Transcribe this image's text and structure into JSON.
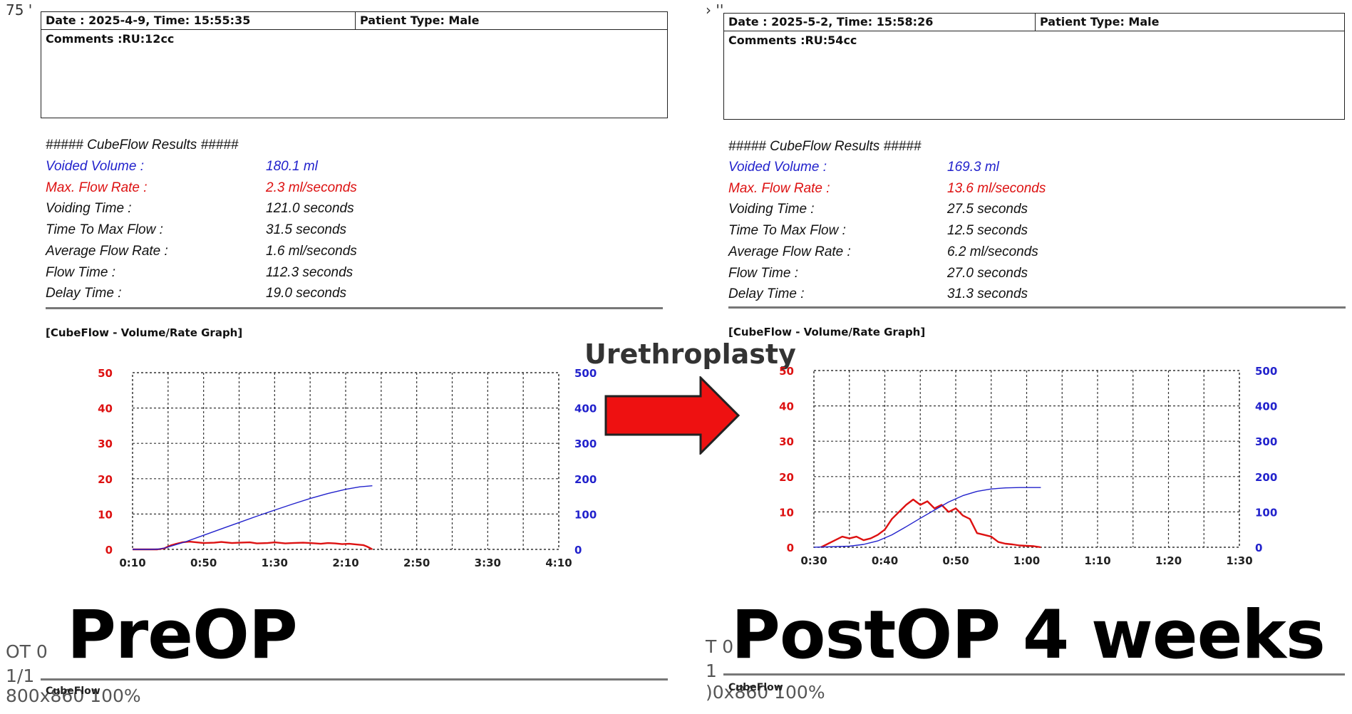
{
  "colors": {
    "rate": "#dd1111",
    "volume": "#2222cc",
    "grid": "#333333",
    "arrow": "#ee1111"
  },
  "arrow_label": "Urethroplasty",
  "panels": [
    {
      "corner_text": "75 '",
      "header": {
        "date": "Date : 2025-4-9,  Time: 15:55:35",
        "patient_type": "Patient Type: Male",
        "comments": "Comments :RU:12cc"
      },
      "results_title": "##### CubeFlow Results #####",
      "results": [
        {
          "label": "Voided Volume :",
          "value": "180.1 ml",
          "color": "#2222cc"
        },
        {
          "label": "Max. Flow Rate :",
          "value": "2.3 ml/seconds",
          "color": "#dd1111"
        },
        {
          "label": "Voiding Time :",
          "value": "121.0 seconds",
          "color": "#111111"
        },
        {
          "label": "Time To Max Flow :",
          "value": "31.5 seconds",
          "color": "#111111"
        },
        {
          "label": "Average Flow Rate :",
          "value": "1.6 ml/seconds",
          "color": "#111111"
        },
        {
          "label": "Flow Time :",
          "value": "112.3 seconds",
          "color": "#111111"
        },
        {
          "label": "Delay Time :",
          "value": "19.0 seconds",
          "color": "#111111"
        }
      ],
      "graph_title": "[CubeFlow - Volume/Rate Graph]",
      "big_label": "PreOP",
      "footer": {
        "line1": "OT 0",
        "line2": "1/1",
        "line3": "800x860 100%",
        "small": "CubeFlow"
      }
    },
    {
      "corner_text": "› ''",
      "header": {
        "date": "Date : 2025-5-2,  Time: 15:58:26",
        "patient_type": "Patient Type: Male",
        "comments": "Comments :RU:54cc"
      },
      "results_title": "##### CubeFlow Results #####",
      "results": [
        {
          "label": "Voided Volume :",
          "value": "169.3 ml",
          "color": "#2222cc"
        },
        {
          "label": "Max. Flow Rate :",
          "value": "13.6 ml/seconds",
          "color": "#dd1111"
        },
        {
          "label": "Voiding Time :",
          "value": "27.5 seconds",
          "color": "#111111"
        },
        {
          "label": "Time To Max Flow :",
          "value": "12.5 seconds",
          "color": "#111111"
        },
        {
          "label": "Average Flow Rate :",
          "value": "6.2 ml/seconds",
          "color": "#111111"
        },
        {
          "label": "Flow Time :",
          "value": "27.0 seconds",
          "color": "#111111"
        },
        {
          "label": "Delay Time :",
          "value": "31.3 seconds",
          "color": "#111111"
        }
      ],
      "graph_title": "[CubeFlow - Volume/Rate Graph]",
      "big_label": "PostOP 4 weeks",
      "footer": {
        "line1": "T 0",
        "line2": "1",
        "line3": ")0x860 100%",
        "small": "CubeFlow"
      }
    }
  ],
  "chart_data": [
    {
      "type": "line",
      "x_ticks": [
        "0:10",
        "0:50",
        "1:30",
        "2:10",
        "2:50",
        "3:30",
        "4:10"
      ],
      "xlim": [
        10,
        250
      ],
      "y_left_ticks": [
        "0",
        "10",
        "20",
        "30",
        "40",
        "50"
      ],
      "y_left_lim": [
        0,
        50
      ],
      "y_right_ticks": [
        "0",
        "100",
        "200",
        "300",
        "400",
        "500"
      ],
      "y_right_lim": [
        0,
        500
      ],
      "grid": true,
      "series": [
        {
          "axis": "left",
          "color": "#dd1111",
          "x": [
            10,
            18,
            24,
            28,
            30,
            32,
            34,
            38,
            42,
            46,
            50,
            56,
            60,
            66,
            70,
            76,
            80,
            86,
            90,
            96,
            100,
            106,
            110,
            116,
            120,
            124,
            128,
            132,
            136,
            140,
            142,
            144,
            145
          ],
          "values": [
            0,
            0,
            0,
            0.3,
            0.8,
            1.2,
            1.5,
            2.0,
            2.2,
            2.0,
            1.8,
            1.9,
            2.1,
            1.8,
            1.9,
            2.0,
            1.7,
            1.8,
            2.0,
            1.7,
            1.8,
            1.9,
            1.8,
            1.6,
            1.8,
            1.7,
            1.5,
            1.6,
            1.4,
            1.2,
            0.8,
            0.3,
            0
          ]
        },
        {
          "axis": "right",
          "color": "#2222cc",
          "x": [
            10,
            20,
            25,
            29,
            40,
            50,
            60,
            70,
            80,
            90,
            100,
            110,
            120,
            130,
            138,
            145
          ],
          "values": [
            0,
            0,
            1,
            5,
            22,
            40,
            58,
            76,
            94,
            111,
            128,
            144,
            158,
            170,
            177,
            180
          ]
        }
      ]
    },
    {
      "type": "line",
      "x_ticks": [
        "0:30",
        "0:40",
        "0:50",
        "1:00",
        "1:10",
        "1:20",
        "1:30"
      ],
      "xlim": [
        30,
        90
      ],
      "y_left_ticks": [
        "0",
        "10",
        "20",
        "30",
        "40",
        "50"
      ],
      "y_left_lim": [
        0,
        50
      ],
      "y_right_ticks": [
        "0",
        "100",
        "200",
        "300",
        "400",
        "500"
      ],
      "y_right_lim": [
        0,
        500
      ],
      "grid": true,
      "series": [
        {
          "axis": "left",
          "color": "#dd1111",
          "x": [
            31,
            32,
            33,
            34,
            35,
            36,
            37,
            38,
            39,
            40,
            41,
            42,
            43,
            44,
            45,
            46,
            47,
            48,
            49,
            50,
            51,
            52,
            53,
            54,
            55,
            56,
            57,
            58,
            59,
            60,
            61,
            62
          ],
          "values": [
            0,
            1,
            2,
            3,
            2.5,
            3,
            2,
            2.5,
            3.5,
            5,
            8,
            10,
            12,
            13.5,
            12,
            13,
            11,
            12,
            10,
            11,
            9,
            8,
            4,
            3.5,
            3,
            1.5,
            1,
            0.8,
            0.5,
            0.4,
            0.3,
            0
          ]
        },
        {
          "axis": "right",
          "color": "#2222cc",
          "x": [
            30,
            35,
            37,
            39,
            41,
            43,
            45,
            47,
            49,
            51,
            53,
            55,
            57,
            59,
            62
          ],
          "values": [
            0,
            3,
            8,
            18,
            35,
            58,
            82,
            105,
            128,
            146,
            158,
            165,
            168,
            169,
            169
          ]
        }
      ]
    }
  ]
}
